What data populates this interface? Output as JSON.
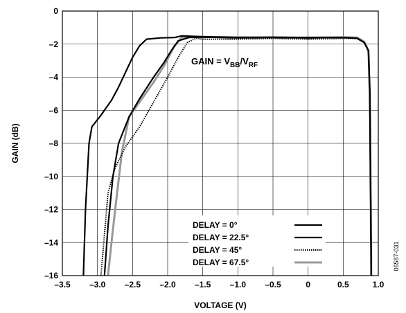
{
  "chart_data": {
    "type": "line",
    "title": "",
    "xlabel": "VOLTAGE (V)",
    "ylabel": "GAIN (dB)",
    "xlim": [
      -3.5,
      1.0
    ],
    "ylim": [
      -16,
      0
    ],
    "grid": true,
    "x_ticks": [
      "–3.5",
      "–3.0",
      "–2.5",
      "–2.0",
      "–1.5",
      "–1.0",
      "–0.5",
      "0",
      "0.5",
      "1.0"
    ],
    "y_ticks": [
      "0",
      "–2",
      "–4",
      "–6",
      "–8",
      "–10",
      "–12",
      "–14",
      "–16"
    ],
    "annotation": {
      "prefix": "GAIN = V",
      "sub1": "BB",
      "mid": "/V",
      "sub2": "RF"
    },
    "side_text": "06587-031",
    "legend_placement": "bottom-right",
    "series": [
      {
        "name": "DELAY = 0°",
        "color": "#000000",
        "style": "solid",
        "points": [
          [
            -3.2,
            -16
          ],
          [
            -3.17,
            -12
          ],
          [
            -3.12,
            -8
          ],
          [
            -3.08,
            -7
          ],
          [
            -2.95,
            -6.3
          ],
          [
            -2.8,
            -5.4
          ],
          [
            -2.7,
            -4.6
          ],
          [
            -2.6,
            -3.7
          ],
          [
            -2.5,
            -2.8
          ],
          [
            -2.4,
            -2.1
          ],
          [
            -2.3,
            -1.7
          ],
          [
            -2.1,
            -1.62
          ],
          [
            -1.9,
            -1.6
          ],
          [
            -1.8,
            -1.5
          ],
          [
            -1.5,
            -1.55
          ],
          [
            -1.0,
            -1.6
          ],
          [
            -0.5,
            -1.58
          ],
          [
            0,
            -1.6
          ],
          [
            0.5,
            -1.6
          ],
          [
            0.7,
            -1.65
          ],
          [
            0.8,
            -1.9
          ],
          [
            0.86,
            -2.4
          ],
          [
            0.88,
            -5
          ],
          [
            0.9,
            -16
          ]
        ]
      },
      {
        "name": "DELAY = 22.5°",
        "color": "#000000",
        "style": "solid",
        "points": [
          [
            -2.9,
            -16
          ],
          [
            -2.85,
            -13
          ],
          [
            -2.78,
            -10
          ],
          [
            -2.7,
            -8
          ],
          [
            -2.55,
            -6.4
          ],
          [
            -2.4,
            -5.3
          ],
          [
            -2.2,
            -4
          ],
          [
            -2.05,
            -3.1
          ],
          [
            -1.95,
            -2.4
          ],
          [
            -1.85,
            -1.8
          ],
          [
            -1.7,
            -1.6
          ],
          [
            -1.5,
            -1.58
          ],
          [
            -1.0,
            -1.62
          ],
          [
            -0.5,
            -1.6
          ],
          [
            0,
            -1.62
          ],
          [
            0.5,
            -1.6
          ],
          [
            0.7,
            -1.65
          ],
          [
            0.8,
            -1.9
          ],
          [
            0.86,
            -2.4
          ],
          [
            0.88,
            -5
          ],
          [
            0.9,
            -16
          ]
        ]
      },
      {
        "name": "DELAY = 45°",
        "color": "#000000",
        "style": "dotted",
        "points": [
          [
            -2.95,
            -16
          ],
          [
            -2.9,
            -13.5
          ],
          [
            -2.85,
            -11
          ],
          [
            -2.75,
            -9.5
          ],
          [
            -2.6,
            -8.2
          ],
          [
            -2.4,
            -7
          ],
          [
            -2.2,
            -5.5
          ],
          [
            -2.0,
            -4
          ],
          [
            -1.85,
            -2.8
          ],
          [
            -1.72,
            -1.9
          ],
          [
            -1.6,
            -1.65
          ],
          [
            -1.5,
            -1.7
          ],
          [
            -1.0,
            -1.7
          ],
          [
            -0.5,
            -1.65
          ],
          [
            0,
            -1.7
          ],
          [
            0.5,
            -1.65
          ],
          [
            0.7,
            -1.65
          ],
          [
            0.8,
            -1.9
          ],
          [
            0.86,
            -2.4
          ],
          [
            0.88,
            -5
          ],
          [
            0.9,
            -16
          ]
        ]
      },
      {
        "name": "DELAY = 67.5°",
        "color": "#999999",
        "style": "solid",
        "points": [
          [
            -2.85,
            -16
          ],
          [
            -2.8,
            -14
          ],
          [
            -2.72,
            -11
          ],
          [
            -2.65,
            -8.5
          ],
          [
            -2.55,
            -6.4
          ],
          [
            -2.35,
            -5.2
          ],
          [
            -2.2,
            -4.3
          ],
          [
            -2.05,
            -3.3
          ],
          [
            -1.9,
            -2.1
          ],
          [
            -1.8,
            -1.6
          ],
          [
            -1.6,
            -1.55
          ],
          [
            -1.0,
            -1.58
          ],
          [
            -0.5,
            -1.6
          ],
          [
            0,
            -1.6
          ],
          [
            0.5,
            -1.58
          ],
          [
            0.7,
            -1.6
          ],
          [
            0.8,
            -1.85
          ],
          [
            0.86,
            -2.4
          ],
          [
            0.88,
            -5
          ],
          [
            0.9,
            -16
          ]
        ]
      }
    ]
  }
}
